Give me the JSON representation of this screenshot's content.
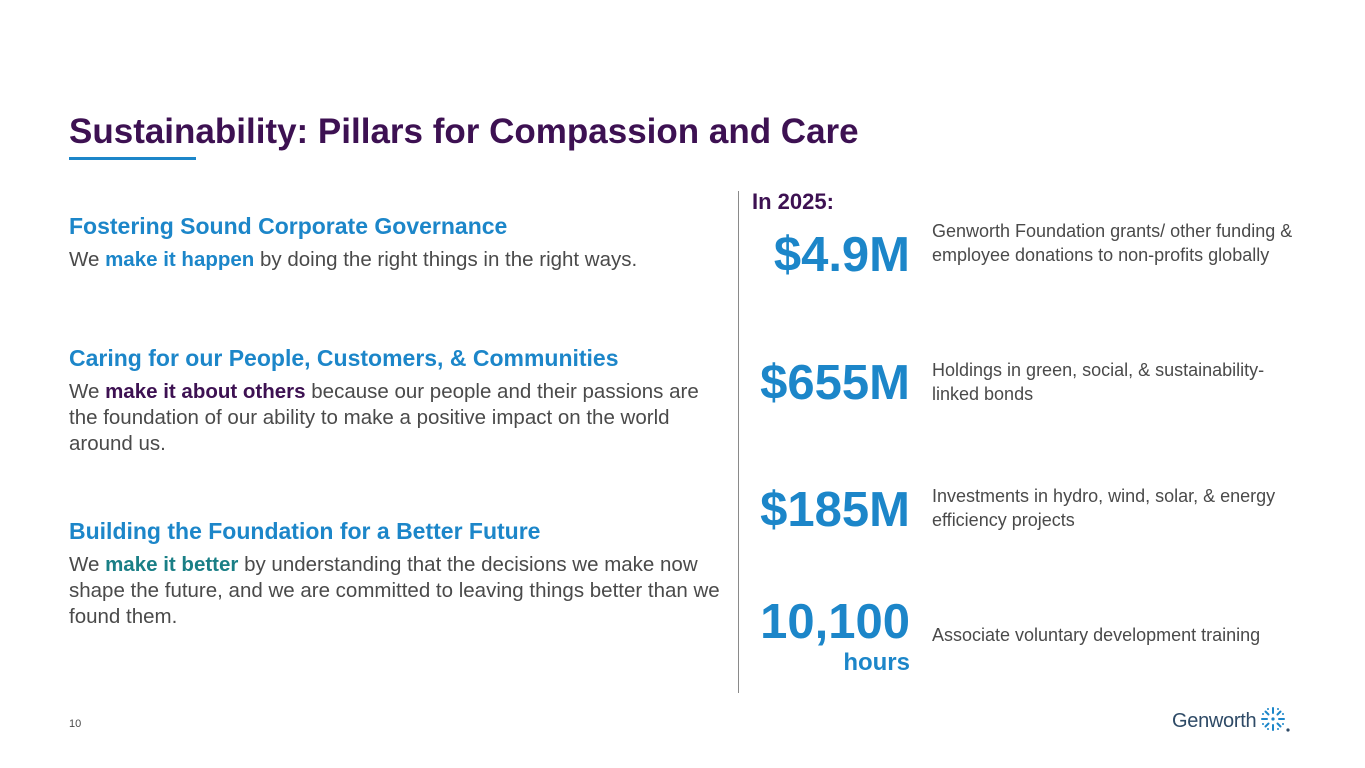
{
  "title": "Sustainability: Pillars for Compassion and Care",
  "pillars": [
    {
      "heading": "Fostering Sound Corporate Governance",
      "pre": "We ",
      "emphasis": "make it happen",
      "post": " by doing the right things in the right ways."
    },
    {
      "heading": "Caring for our People, Customers, & Communities",
      "pre": "We ",
      "emphasis": "make it about others",
      "post": " because our people and their passions are the foundation of our ability to make a positive impact on the world around us."
    },
    {
      "heading": "Building the Foundation for a Better Future",
      "pre": "We ",
      "emphasis": "make it better",
      "post": " by understanding that the decisions we make now shape the future, and we are committed to leaving things better than we found them."
    }
  ],
  "stats_header": "In 2025:",
  "stats": [
    {
      "value": "$4.9M",
      "description": "Genworth Foundation grants/ other funding & employee donations to non-profits globally"
    },
    {
      "value": "$655M",
      "description": "Holdings in green, social, & sustainability-\nlinked bonds"
    },
    {
      "value": "$185M",
      "description": "Investments in hydro, wind, solar, & energy\n efficiency projects"
    },
    {
      "value": "10,100",
      "unit": "hours",
      "description": "Associate voluntary development training"
    }
  ],
  "footer": {
    "page_number": "10",
    "logo_text": "Genworth"
  },
  "colors": {
    "title": "#3d1152",
    "accent_blue": "#1c86c9",
    "accent_teal": "#1a7f86",
    "body_text": "#4a4a4a"
  }
}
